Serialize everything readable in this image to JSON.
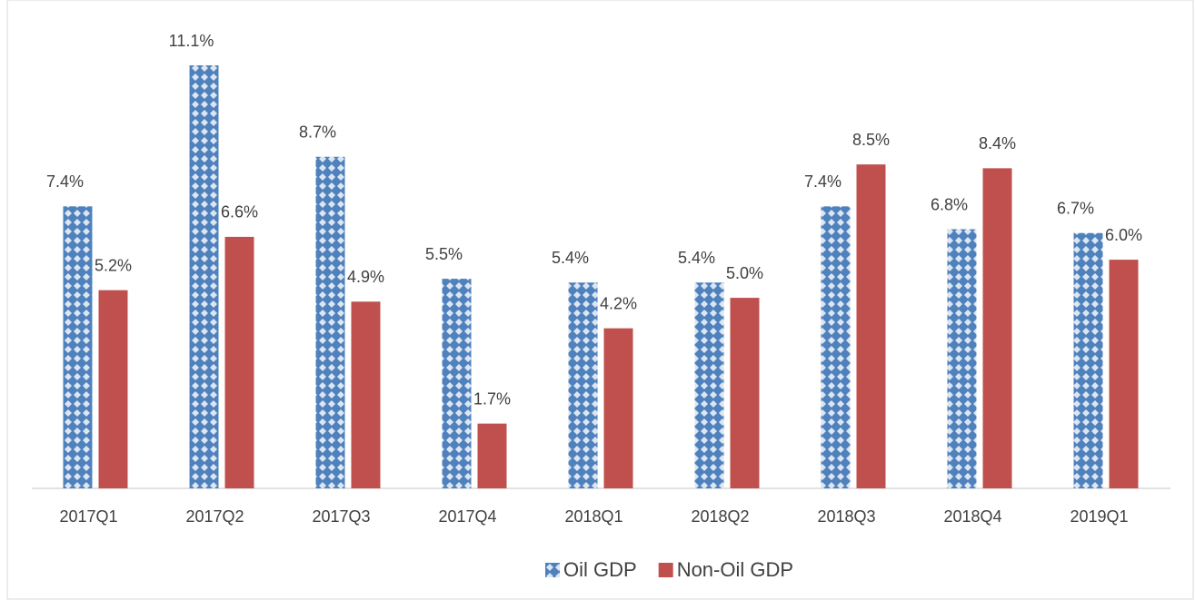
{
  "chart_data": {
    "type": "bar",
    "categories": [
      "2017Q1",
      "2017Q2",
      "2017Q3",
      "2017Q4",
      "2018Q1",
      "2018Q2",
      "2018Q3",
      "2018Q4",
      "2019Q1"
    ],
    "series": [
      {
        "name": "Oil GDP",
        "color": "#4f81bd",
        "pattern": "diamonds",
        "values": [
          7.4,
          11.1,
          8.7,
          5.5,
          5.4,
          5.4,
          7.4,
          6.8,
          6.7
        ],
        "value_labels": [
          "7.4%",
          "11.1%",
          "8.7%",
          "5.5%",
          "5.4%",
          "5.4%",
          "7.4%",
          "6.8%",
          "6.7%"
        ]
      },
      {
        "name": "Non-Oil GDP",
        "color": "#c0504d",
        "values": [
          5.2,
          6.6,
          4.9,
          1.7,
          4.2,
          5.0,
          8.5,
          8.4,
          6.0
        ],
        "value_labels": [
          "5.2%",
          "6.6%",
          "4.9%",
          "1.7%",
          "4.2%",
          "5.0%",
          "8.5%",
          "8.4%",
          "6.0%"
        ]
      }
    ],
    "legend": "bottom"
  }
}
